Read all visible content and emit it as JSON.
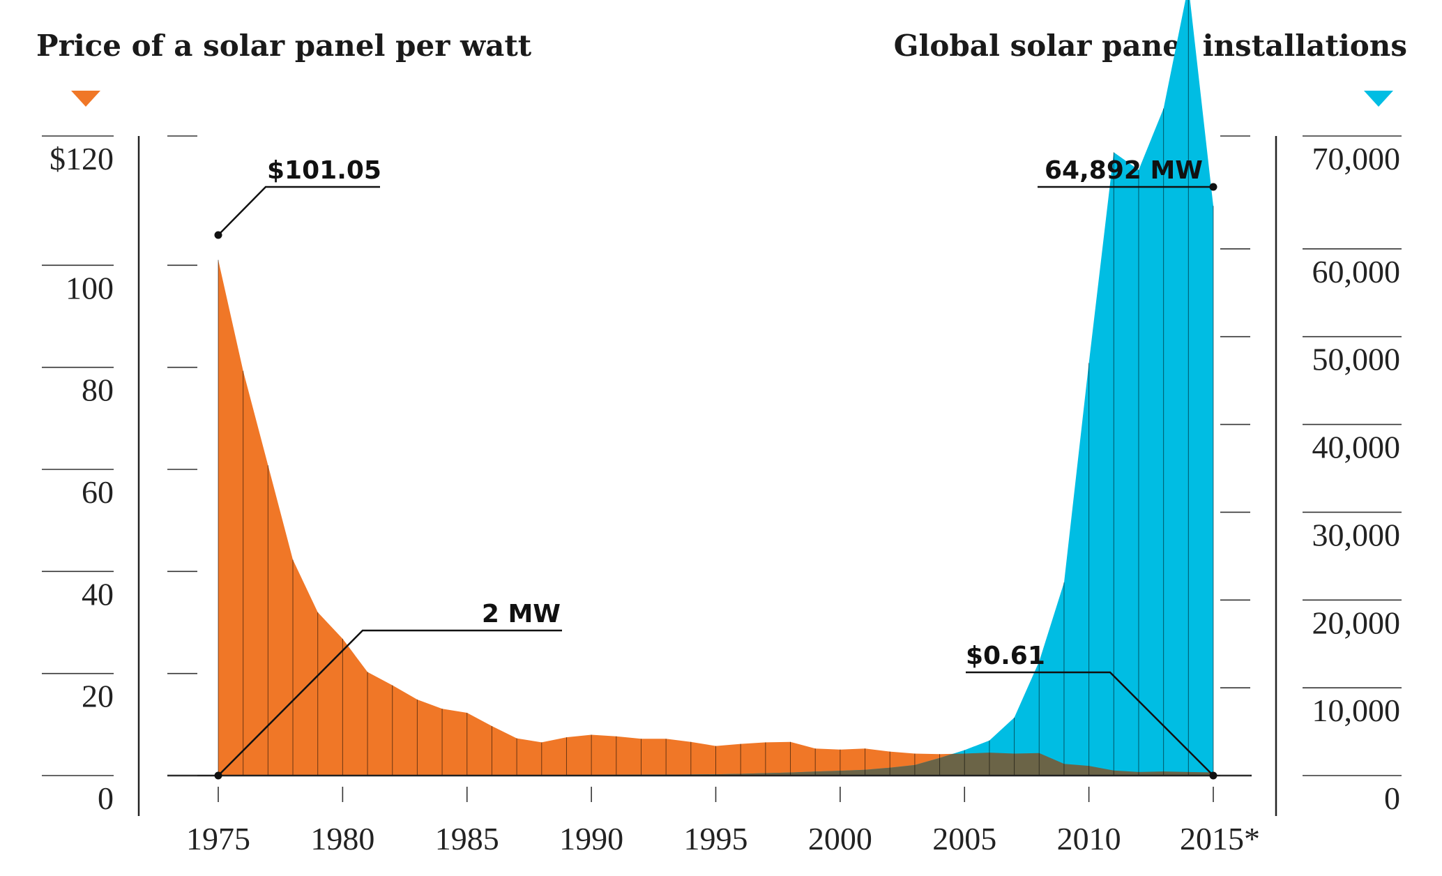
{
  "chart_data": {
    "type": "area",
    "title_left": "Price of a solar panel per watt",
    "title_right": "Global solar panel installations",
    "colors": {
      "price": "#f07727",
      "installations": "#00bde3",
      "overlap": "#6b6447"
    },
    "x": [
      1975,
      1976,
      1977,
      1978,
      1979,
      1980,
      1981,
      1982,
      1983,
      1984,
      1985,
      1986,
      1987,
      1988,
      1989,
      1990,
      1991,
      1992,
      1993,
      1994,
      1995,
      1996,
      1997,
      1998,
      1999,
      2000,
      2001,
      2002,
      2003,
      2004,
      2005,
      2006,
      2007,
      2008,
      2009,
      2010,
      2011,
      2012,
      2013,
      2014,
      2015
    ],
    "x_tick_labels": [
      "1975",
      "1980",
      "1985",
      "1990",
      "1995",
      "2000",
      "2005",
      "2010",
      "2015*"
    ],
    "x_tick_years": [
      1975,
      1980,
      1985,
      1990,
      1995,
      2000,
      2005,
      2010,
      2015
    ],
    "series": [
      {
        "name": "Price of a solar panel per watt",
        "axis": "left",
        "values": [
          101.05,
          79.3,
          60.8,
          42.3,
          32.0,
          26.8,
          20.3,
          17.7,
          14.9,
          13.1,
          12.3,
          9.7,
          7.3,
          6.5,
          7.5,
          8.0,
          7.7,
          7.2,
          7.2,
          6.6,
          5.8,
          6.2,
          6.5,
          6.6,
          5.3,
          5.1,
          5.3,
          4.7,
          4.3,
          4.2,
          4.3,
          4.5,
          4.3,
          4.4,
          2.3,
          1.9,
          1.0,
          0.7,
          0.8,
          0.7,
          0.61
        ]
      },
      {
        "name": "Global solar panel installations",
        "axis": "right",
        "values": [
          2,
          2,
          2,
          3,
          5,
          7,
          10,
          15,
          20,
          27,
          35,
          40,
          50,
          60,
          70,
          80,
          90,
          100,
          110,
          130,
          150,
          200,
          280,
          350,
          450,
          550,
          650,
          900,
          1200,
          2000,
          2900,
          4000,
          6600,
          13000,
          22000,
          47000,
          71000,
          69000,
          76000,
          90000,
          64892
        ]
      }
    ],
    "ylim_left": [
      0,
      120
    ],
    "yticks_left": [
      "$120",
      "100",
      "80",
      "60",
      "40",
      "20",
      "0"
    ],
    "yticks_left_values": [
      120,
      100,
      80,
      60,
      40,
      20,
      0
    ],
    "ylim_right": [
      0,
      70000
    ],
    "yticks_right": [
      "70,000",
      "60,000",
      "50,000",
      "40,000",
      "30,000",
      "20,000",
      "10,000",
      "0"
    ],
    "yticks_right_values": [
      70000,
      60000,
      50000,
      40000,
      30000,
      20000,
      10000,
      0
    ],
    "annotations": {
      "price_start": "$101.05",
      "install_start": "2 MW",
      "price_end": "$0.61",
      "install_end": "64,892 MW"
    },
    "grid": false
  }
}
